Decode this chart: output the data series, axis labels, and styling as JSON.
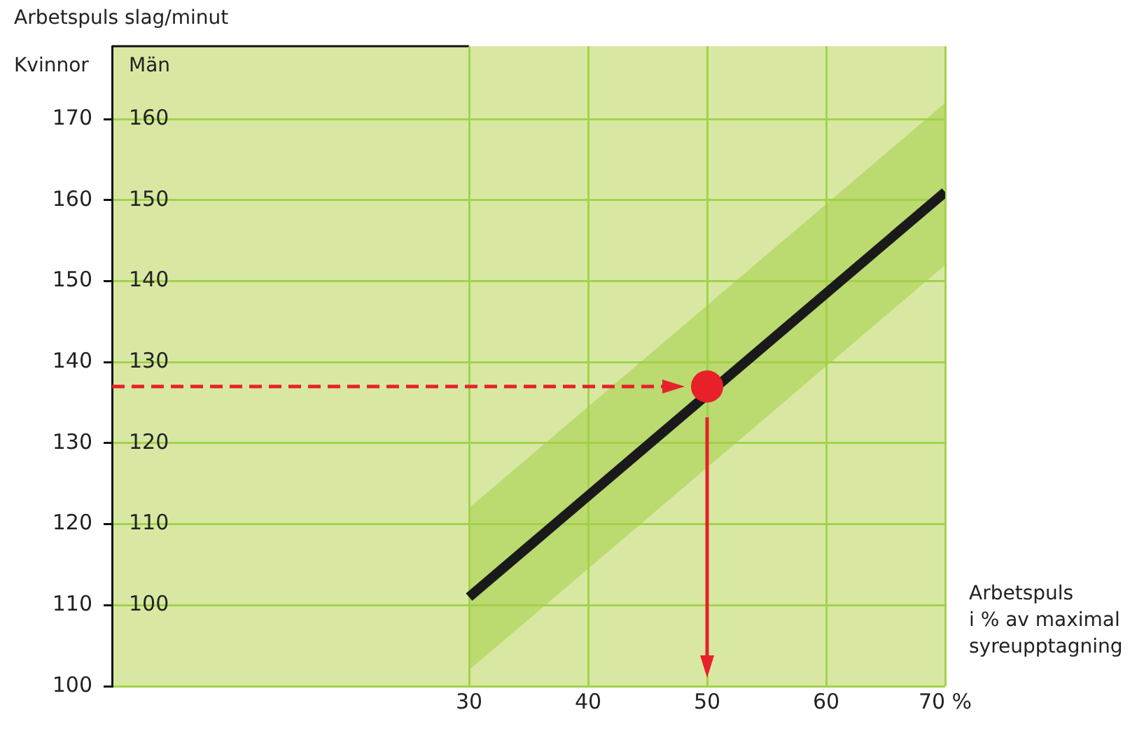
{
  "chart_data": {
    "type": "line",
    "title": "Arbetspuls slag/minut",
    "ylabel": "Kvinnor",
    "y2label": "Män",
    "xlabel": "Arbetspuls\ni % av maximal\nsyreupptagning",
    "xlim": [
      0,
      70
    ],
    "xticks": [
      30,
      40,
      50,
      60,
      {
        "value": 70,
        "label": "70 %"
      }
    ],
    "ylim": [
      100,
      179
    ],
    "yticks": [
      100,
      110,
      120,
      130,
      140,
      150,
      160,
      170
    ],
    "y2lim": [
      90,
      169
    ],
    "y2ticks": [
      100,
      110,
      120,
      130,
      140,
      150,
      160
    ],
    "grid": true,
    "legend": false,
    "line_style": "solid",
    "series": [
      {
        "color": "#1a1a1a",
        "x": [
          30,
          70
        ],
        "values": [
          111,
          161
        ],
        "lower": [
          102,
          152
        ],
        "upper": [
          122,
          172
        ]
      },
      {
        "type": "scatter",
        "color": "#e8202a",
        "x": [
          50
        ],
        "values": [
          137
        ]
      }
    ],
    "ref_lines": [
      {
        "axis": "y",
        "value": 137,
        "color": "#e8202a",
        "line_style": "dashed"
      },
      {
        "axis": "x",
        "value": 50,
        "color": "#e8202a",
        "line_style": "solid"
      }
    ]
  }
}
